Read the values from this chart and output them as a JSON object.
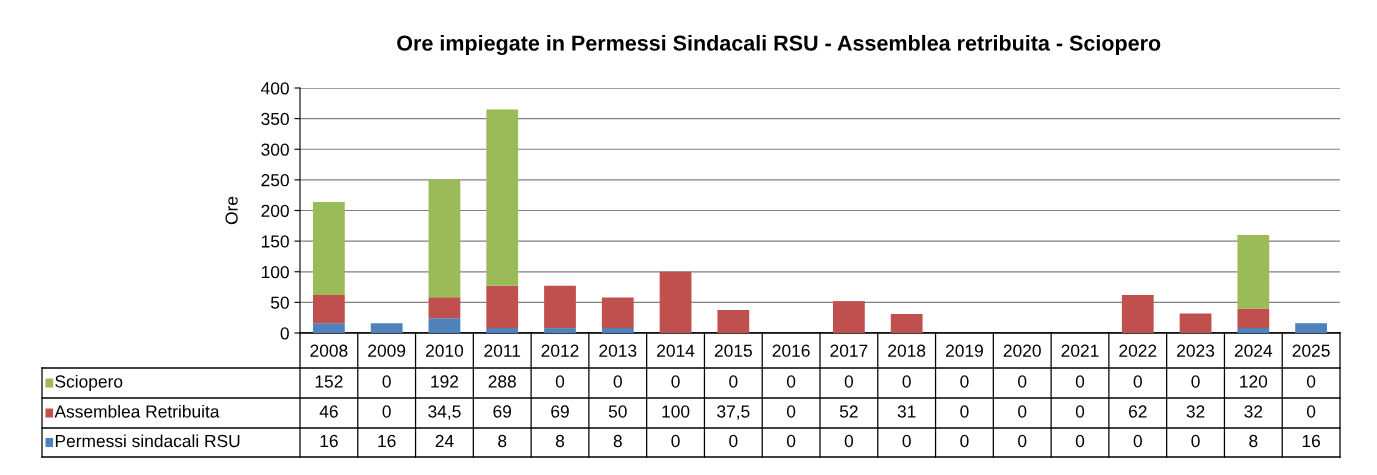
{
  "chart_data": {
    "type": "bar",
    "stacked": true,
    "title": "Ore impiegate in Permessi Sindacali RSU - Assemblea retribuita - Sciopero",
    "ylabel": "Ore",
    "categories": [
      "2008",
      "2009",
      "2010",
      "2011",
      "2012",
      "2013",
      "2014",
      "2015",
      "2016",
      "2017",
      "2018",
      "2019",
      "2020",
      "2021",
      "2022",
      "2023",
      "2024",
      "2025"
    ],
    "series": [
      {
        "name": "Permessi sindacali RSU",
        "color": "#4f81bd",
        "values": [
          16,
          16,
          24,
          8,
          8,
          8,
          0,
          0,
          0,
          0,
          0,
          0,
          0,
          0,
          0,
          0,
          8,
          16
        ],
        "value_labels": [
          "16",
          "16",
          "24",
          "8",
          "8",
          "8",
          "0",
          "0",
          "0",
          "0",
          "0",
          "0",
          "0",
          "0",
          "0",
          "0",
          "8",
          "16"
        ]
      },
      {
        "name": "Assemblea Retribuita",
        "color": "#c0504d",
        "values": [
          46,
          0,
          34.5,
          69,
          69,
          50,
          100,
          37.5,
          0,
          52,
          31,
          0,
          0,
          0,
          62,
          32,
          32,
          0
        ],
        "value_labels": [
          "46",
          "0",
          "34,5",
          "69",
          "69",
          "50",
          "100",
          "37,5",
          "0",
          "52",
          "31",
          "0",
          "0",
          "0",
          "62",
          "32",
          "32",
          "0"
        ]
      },
      {
        "name": "Sciopero",
        "color": "#9bbb59",
        "values": [
          152,
          0,
          192,
          288,
          0,
          0,
          0,
          0,
          0,
          0,
          0,
          0,
          0,
          0,
          0,
          0,
          120,
          0
        ],
        "value_labels": [
          "152",
          "0",
          "192",
          "288",
          "0",
          "0",
          "0",
          "0",
          "0",
          "0",
          "0",
          "0",
          "0",
          "0",
          "0",
          "0",
          "120",
          "0"
        ]
      }
    ],
    "ylim": [
      0,
      400
    ],
    "yticks": [
      0,
      50,
      100,
      150,
      200,
      250,
      300,
      350,
      400
    ],
    "grid": "y",
    "legend": "bottom"
  }
}
